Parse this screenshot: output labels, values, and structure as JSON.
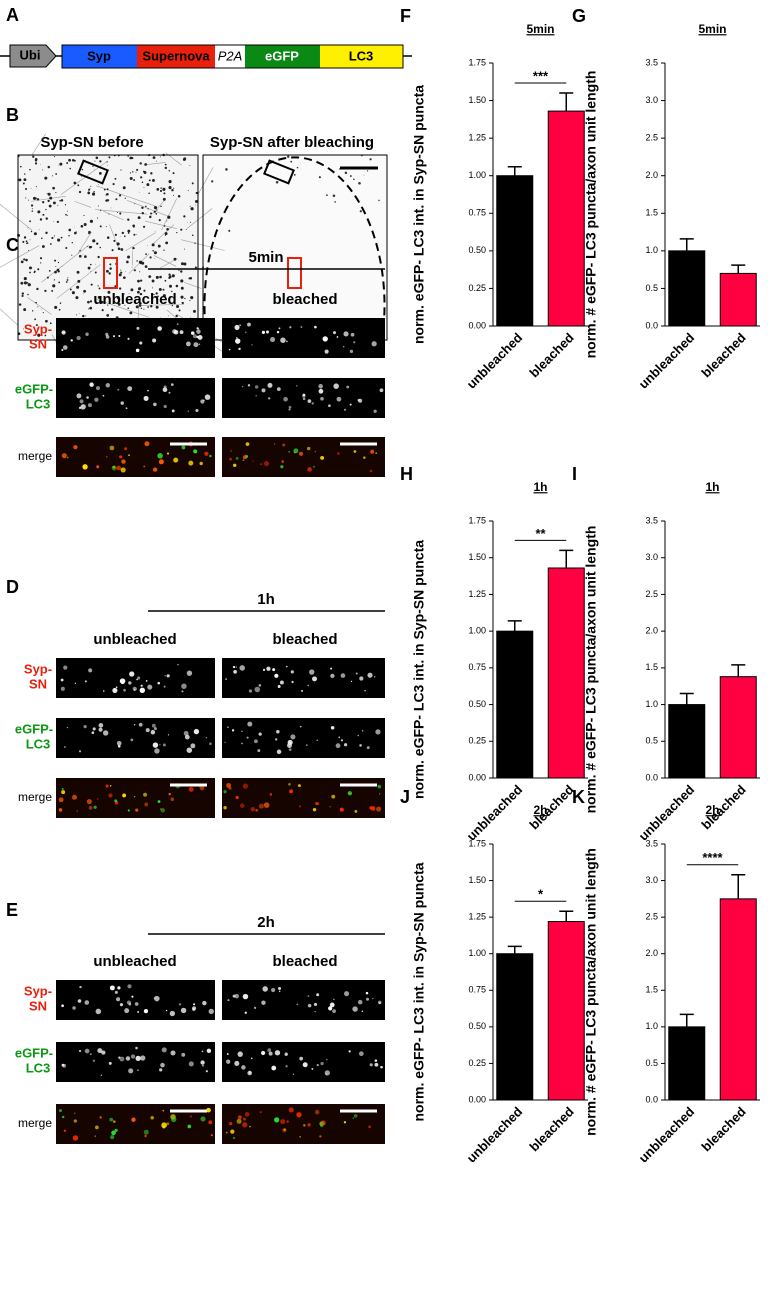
{
  "construct": {
    "label": "A",
    "promoter": "Ubi",
    "segments": [
      "Syp",
      "Supernova",
      "P2A",
      "eGFP",
      "LC3"
    ]
  },
  "panel_b": {
    "label": "B",
    "titles": [
      "Syp-SN before",
      "Syp-SN after bleaching"
    ]
  },
  "row_labels": {
    "syp": [
      "Syp-",
      "SN"
    ],
    "lc3": [
      "eGFP-",
      "LC3"
    ],
    "merge": "merge"
  },
  "time_panels": [
    {
      "label": "C",
      "time": "5min",
      "conditions": [
        "unbleached",
        "bleached"
      ]
    },
    {
      "label": "D",
      "time": "1h",
      "conditions": [
        "unbleached",
        "bleached"
      ]
    },
    {
      "label": "E",
      "time": "2h",
      "conditions": [
        "unbleached",
        "bleached"
      ]
    }
  ],
  "chart_data": [
    {
      "type": "bar",
      "panel": "F",
      "title": "5min",
      "ylabel": "norm. eGFP- LC3 int. in Syp-SN puncta",
      "categories": [
        "unbleached",
        "bleached"
      ],
      "values": [
        1.0,
        1.43
      ],
      "errors": [
        0.06,
        0.12
      ],
      "colors": [
        "#000000",
        "#ff0040"
      ],
      "annotation": "***",
      "ylim": [
        0,
        1.75
      ],
      "yticks": [
        {
          "value": 0,
          "label": "0.00"
        },
        0.25,
        {
          "value": 0.5,
          "label": "0.50"
        },
        0.75,
        {
          "value": 1,
          "label": "1.00"
        },
        1.25,
        {
          "value": 1.5,
          "label": "1.50"
        },
        1.75
      ]
    },
    {
      "type": "bar",
      "panel": "G",
      "title": "5min",
      "ylabel": "norm. # eGFP- LC3 puncta/axon unit length",
      "categories": [
        "unbleached",
        "bleached"
      ],
      "values": [
        1.0,
        0.7
      ],
      "errors": [
        0.16,
        0.11
      ],
      "colors": [
        "#000000",
        "#ff0040"
      ],
      "ylim": [
        0,
        3.5
      ],
      "yticks": [
        {
          "value": 0,
          "label": "0.0"
        },
        0.5,
        {
          "value": 1,
          "label": "1.0"
        },
        1.5,
        {
          "value": 2,
          "label": "2.0"
        },
        2.5,
        {
          "value": 3,
          "label": "3.0"
        },
        3.5
      ]
    },
    {
      "type": "bar",
      "panel": "H",
      "title": "1h",
      "ylabel": "norm. eGFP- LC3 int. in Syp-SN puncta",
      "categories": [
        "unbleached",
        "bleached"
      ],
      "values": [
        1.0,
        1.43
      ],
      "errors": [
        0.07,
        0.12
      ],
      "colors": [
        "#000000",
        "#ff0040"
      ],
      "annotation": "**",
      "ylim": [
        0,
        1.75
      ],
      "yticks": [
        {
          "value": 0,
          "label": "0.00"
        },
        0.25,
        {
          "value": 0.5,
          "label": "0.50"
        },
        0.75,
        {
          "value": 1,
          "label": "1.00"
        },
        1.25,
        {
          "value": 1.5,
          "label": "1.50"
        },
        1.75
      ]
    },
    {
      "type": "bar",
      "panel": "I",
      "title": "1h",
      "ylabel": "norm. # eGFP- LC3 puncta/axon unit length",
      "categories": [
        "unbleached",
        "bleached"
      ],
      "values": [
        1.0,
        1.38
      ],
      "errors": [
        0.15,
        0.16
      ],
      "colors": [
        "#000000",
        "#ff0040"
      ],
      "ylim": [
        0,
        3.5
      ],
      "yticks": [
        {
          "value": 0,
          "label": "0.0"
        },
        0.5,
        {
          "value": 1,
          "label": "1.0"
        },
        1.5,
        {
          "value": 2,
          "label": "2.0"
        },
        2.5,
        {
          "value": 3,
          "label": "3.0"
        },
        3.5
      ]
    },
    {
      "type": "bar",
      "panel": "J",
      "title": "2h",
      "ylabel": "norm. eGFP- LC3 int. in Syp-SN puncta",
      "categories": [
        "unbleached",
        "bleached"
      ],
      "values": [
        1.0,
        1.22
      ],
      "errors": [
        0.05,
        0.07
      ],
      "colors": [
        "#000000",
        "#ff0040"
      ],
      "annotation": "*",
      "ylim": [
        0,
        1.75
      ],
      "yticks": [
        {
          "value": 0,
          "label": "0.00"
        },
        0.25,
        {
          "value": 0.5,
          "label": "0.50"
        },
        0.75,
        {
          "value": 1,
          "label": "1.00"
        },
        1.25,
        {
          "value": 1.5,
          "label": "1.50"
        },
        1.75
      ]
    },
    {
      "type": "bar",
      "panel": "K",
      "title": "2h",
      "ylabel": "norm. # eGFP- LC3 puncta/axon unit length",
      "categories": [
        "unbleached",
        "bleached"
      ],
      "values": [
        1.0,
        2.75
      ],
      "errors": [
        0.17,
        0.33
      ],
      "colors": [
        "#000000",
        "#ff0040"
      ],
      "annotation": "****",
      "ylim": [
        0,
        3.5
      ],
      "yticks": [
        {
          "value": 0,
          "label": "0.0"
        },
        0.5,
        {
          "value": 1,
          "label": "1.0"
        },
        1.5,
        {
          "value": 2,
          "label": "2.0"
        },
        2.5,
        {
          "value": 3,
          "label": "3.0"
        },
        3.5
      ]
    }
  ]
}
